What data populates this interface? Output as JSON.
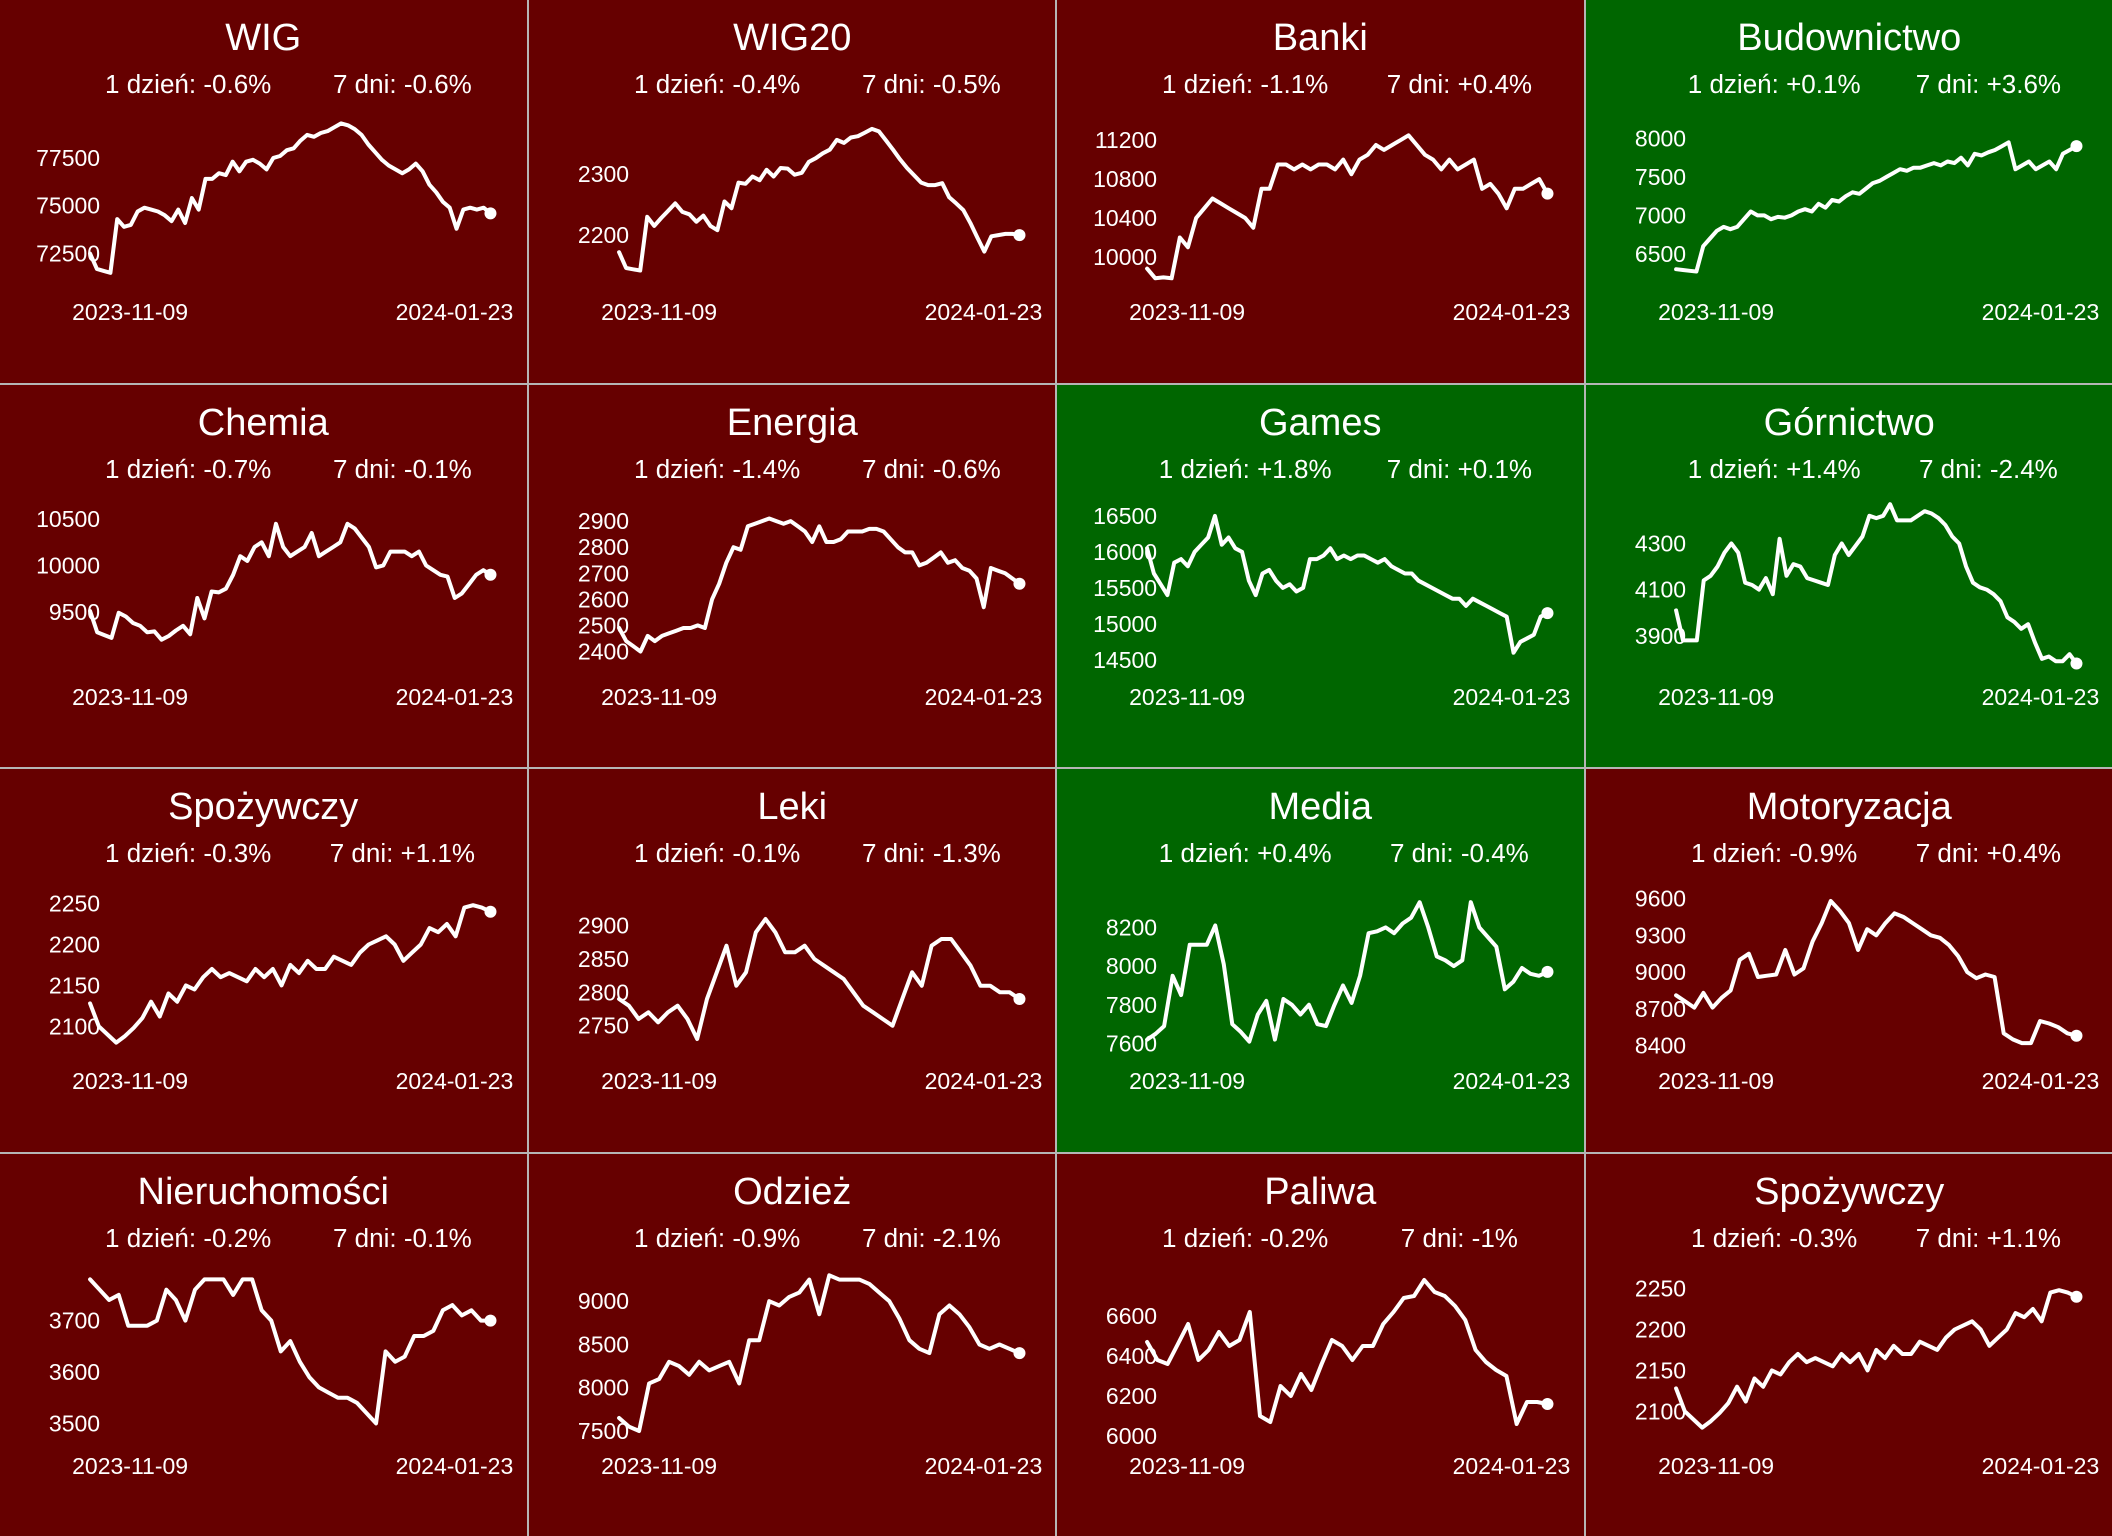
{
  "colors": {
    "down": "#660000",
    "up": "#006600",
    "line": "#ffffff"
  },
  "chart_data": [
    {
      "type": "line",
      "title": "WIG",
      "stat_1d": "1 dzień: -0.6%",
      "stat_7d": "7 dni: -0.6%",
      "trend": "down",
      "x_start": "2023-11-09",
      "x_end": "2024-01-23",
      "yticks": [
        72500,
        75000,
        77500
      ],
      "ylim": [
        70600,
        80000
      ],
      "values": [
        72500,
        71700,
        71600,
        71500,
        74300,
        73900,
        74000,
        74700,
        74900,
        74800,
        74700,
        74500,
        74200,
        74800,
        74100,
        75400,
        74800,
        76400,
        76400,
        76700,
        76600,
        77300,
        76800,
        77300,
        77400,
        77200,
        76900,
        77500,
        77600,
        77900,
        78000,
        78400,
        78700,
        78600,
        78800,
        78900,
        79100,
        79300,
        79200,
        79000,
        78700,
        78200,
        77800,
        77400,
        77100,
        76900,
        76700,
        76900,
        77200,
        76800,
        76100,
        75700,
        75200,
        74900,
        73800,
        74800,
        74900,
        74800,
        74900,
        74600
      ]
    },
    {
      "type": "line",
      "title": "WIG20",
      "stat_1d": "1 dzień: -0.4%",
      "stat_7d": "7 dni: -0.5%",
      "trend": "down",
      "x_start": "2023-11-09",
      "x_end": "2024-01-23",
      "yticks": [
        2200,
        2300
      ],
      "ylim": [
        2110,
        2405
      ],
      "values": [
        2172,
        2146,
        2144,
        2142,
        2230,
        2215,
        2228,
        2240,
        2252,
        2238,
        2234,
        2222,
        2232,
        2215,
        2208,
        2255,
        2244,
        2286,
        2284,
        2296,
        2290,
        2307,
        2296,
        2310,
        2309,
        2299,
        2302,
        2320,
        2326,
        2334,
        2340,
        2356,
        2351,
        2360,
        2362,
        2368,
        2374,
        2370,
        2355,
        2340,
        2324,
        2310,
        2298,
        2286,
        2282,
        2282,
        2285,
        2262,
        2252,
        2241,
        2220,
        2196,
        2173,
        2198,
        2200,
        2202,
        2202,
        2200
      ]
    },
    {
      "type": "line",
      "title": "Banki",
      "stat_1d": "1 dzień: -1.1%",
      "stat_7d": "7 dni: +0.4%",
      "trend": "down",
      "x_start": "2023-11-09",
      "x_end": "2024-01-23",
      "yticks": [
        10000,
        10400,
        10800,
        11200
      ],
      "ylim": [
        9660,
        11510
      ],
      "values": [
        9880,
        9780,
        9790,
        9780,
        10200,
        10100,
        10400,
        10500,
        10600,
        10550,
        10500,
        10450,
        10400,
        10300,
        10700,
        10700,
        10950,
        10950,
        10900,
        10950,
        10900,
        10950,
        10950,
        10900,
        11000,
        10850,
        11000,
        11050,
        11150,
        11100,
        11150,
        11200,
        11250,
        11150,
        11050,
        11000,
        10900,
        11000,
        10900,
        10950,
        11000,
        10700,
        10750,
        10650,
        10500,
        10700,
        10700,
        10750,
        10800,
        10650
      ]
    },
    {
      "type": "line",
      "title": "Budownictwo",
      "stat_1d": "1 dzień: +0.1%",
      "stat_7d": "7 dni: +3.6%",
      "trend": "up",
      "x_start": "2023-11-09",
      "x_end": "2024-01-23",
      "yticks": [
        6500,
        7000,
        7500,
        8000
      ],
      "ylim": [
        6030,
        8370
      ],
      "values": [
        6300,
        6290,
        6280,
        6270,
        6600,
        6700,
        6800,
        6850,
        6820,
        6850,
        6950,
        7050,
        7000,
        7000,
        6950,
        6980,
        6970,
        7000,
        7050,
        7080,
        7050,
        7150,
        7100,
        7200,
        7180,
        7250,
        7300,
        7280,
        7350,
        7420,
        7450,
        7500,
        7550,
        7600,
        7580,
        7620,
        7620,
        7650,
        7680,
        7650,
        7700,
        7680,
        7750,
        7650,
        7800,
        7780,
        7820,
        7850,
        7900,
        7950,
        7600,
        7650,
        7700,
        7600,
        7650,
        7700,
        7600,
        7800,
        7850,
        7900
      ]
    },
    {
      "type": "line",
      "title": "Chemia",
      "stat_1d": "1 dzień: -0.7%",
      "stat_7d": "7 dni: -0.1%",
      "trend": "down",
      "x_start": "2023-11-09",
      "x_end": "2024-01-23",
      "yticks": [
        9500,
        10000,
        10500
      ],
      "ylim": [
        8820,
        10760
      ],
      "values": [
        9510,
        9280,
        9250,
        9220,
        9490,
        9450,
        9380,
        9350,
        9280,
        9290,
        9200,
        9240,
        9300,
        9350,
        9260,
        9650,
        9430,
        9720,
        9710,
        9750,
        9900,
        10100,
        10050,
        10200,
        10250,
        10100,
        10450,
        10200,
        10100,
        10150,
        10200,
        10350,
        10100,
        10150,
        10200,
        10250,
        10450,
        10400,
        10300,
        10200,
        9980,
        10000,
        10150,
        10150,
        10150,
        10100,
        10150,
        10000,
        9950,
        9900,
        9880,
        9650,
        9700,
        9800,
        9900,
        9950,
        9900
      ]
    },
    {
      "type": "line",
      "title": "Energia",
      "stat_1d": "1 dzień: -1.4%",
      "stat_7d": "7 dni: -0.6%",
      "trend": "down",
      "x_start": "2023-11-09",
      "x_end": "2024-01-23",
      "yticks": [
        2400,
        2500,
        2600,
        2700,
        2800,
        2900
      ],
      "ylim": [
        2310,
        3000
      ],
      "values": [
        2490,
        2440,
        2420,
        2400,
        2460,
        2440,
        2460,
        2470,
        2480,
        2490,
        2490,
        2500,
        2490,
        2600,
        2660,
        2740,
        2800,
        2790,
        2880,
        2890,
        2900,
        2910,
        2900,
        2890,
        2900,
        2880,
        2860,
        2820,
        2880,
        2820,
        2820,
        2830,
        2860,
        2860,
        2860,
        2870,
        2870,
        2860,
        2830,
        2800,
        2780,
        2780,
        2730,
        2740,
        2760,
        2780,
        2740,
        2750,
        2720,
        2710,
        2680,
        2570,
        2720,
        2710,
        2700,
        2680,
        2660
      ]
    },
    {
      "type": "line",
      "title": "Games",
      "stat_1d": "1 dzień: +1.8%",
      "stat_7d": "7 dni: +0.1%",
      "trend": "up",
      "x_start": "2023-11-09",
      "x_end": "2024-01-23",
      "yticks": [
        14500,
        15000,
        15500,
        16000,
        16500
      ],
      "ylim": [
        14290,
        16790
      ],
      "values": [
        16050,
        15700,
        15550,
        15400,
        15850,
        15900,
        15800,
        16000,
        16100,
        16200,
        16500,
        16100,
        16200,
        16050,
        16000,
        15600,
        15400,
        15700,
        15750,
        15600,
        15500,
        15550,
        15450,
        15500,
        15900,
        15900,
        15950,
        16050,
        15900,
        15950,
        15900,
        15950,
        15950,
        15900,
        15850,
        15900,
        15800,
        15750,
        15700,
        15700,
        15600,
        15550,
        15500,
        15450,
        15400,
        15350,
        15350,
        15250,
        15350,
        15300,
        15250,
        15200,
        15150,
        15100,
        14600,
        14750,
        14800,
        14850,
        15100,
        15150
      ]
    },
    {
      "type": "line",
      "title": "Górnictwo",
      "stat_1d": "1 dzień: +1.4%",
      "stat_7d": "7 dni: -2.4%",
      "trend": "up",
      "x_start": "2023-11-09",
      "x_end": "2024-01-23",
      "yticks": [
        3900,
        4100,
        4300
      ],
      "ylim": [
        3730,
        4510
      ],
      "values": [
        4010,
        3880,
        3880,
        3880,
        4140,
        4160,
        4200,
        4260,
        4300,
        4260,
        4130,
        4120,
        4100,
        4150,
        4080,
        4320,
        4160,
        4210,
        4200,
        4150,
        4140,
        4130,
        4120,
        4250,
        4300,
        4250,
        4290,
        4330,
        4420,
        4410,
        4420,
        4470,
        4400,
        4400,
        4400,
        4420,
        4440,
        4430,
        4410,
        4380,
        4330,
        4300,
        4200,
        4130,
        4110,
        4100,
        4080,
        4050,
        3980,
        3960,
        3930,
        3950,
        3870,
        3800,
        3810,
        3790,
        3790,
        3820,
        3780
      ]
    },
    {
      "type": "line",
      "title": "Spożywczy",
      "stat_1d": "1 dzień: -0.3%",
      "stat_7d": "7 dni: +1.1%",
      "trend": "down",
      "x_start": "2023-11-09",
      "x_end": "2024-01-23",
      "yticks": [
        2100,
        2150,
        2200,
        2250
      ],
      "ylim": [
        2060,
        2280
      ],
      "values": [
        2128,
        2100,
        2090,
        2080,
        2088,
        2098,
        2110,
        2130,
        2112,
        2140,
        2130,
        2150,
        2145,
        2160,
        2170,
        2160,
        2165,
        2160,
        2155,
        2170,
        2160,
        2170,
        2150,
        2175,
        2165,
        2180,
        2170,
        2170,
        2185,
        2180,
        2175,
        2190,
        2200,
        2205,
        2210,
        2200,
        2180,
        2190,
        2200,
        2220,
        2215,
        2225,
        2210,
        2245,
        2248,
        2245,
        2240
      ]
    },
    {
      "type": "line",
      "title": "Leki",
      "stat_1d": "1 dzień: -0.1%",
      "stat_7d": "7 dni: -1.3%",
      "trend": "down",
      "x_start": "2023-11-09",
      "x_end": "2024-01-23",
      "yticks": [
        2750,
        2800,
        2850,
        2900
      ],
      "ylim": [
        2700,
        2970
      ],
      "values": [
        2790,
        2780,
        2760,
        2770,
        2755,
        2770,
        2780,
        2760,
        2730,
        2790,
        2830,
        2870,
        2810,
        2830,
        2890,
        2910,
        2890,
        2860,
        2860,
        2870,
        2850,
        2840,
        2830,
        2820,
        2800,
        2780,
        2770,
        2760,
        2750,
        2790,
        2830,
        2810,
        2870,
        2880,
        2880,
        2860,
        2840,
        2810,
        2810,
        2800,
        2800,
        2790
      ]
    },
    {
      "type": "line",
      "title": "Media",
      "stat_1d": "1 dzień: +0.4%",
      "stat_7d": "7 dni: -0.4%",
      "trend": "up",
      "x_start": "2023-11-09",
      "x_end": "2024-01-23",
      "yticks": [
        7600,
        7800,
        8000,
        8200
      ],
      "ylim": [
        7520,
        8450
      ],
      "values": [
        7620,
        7650,
        7690,
        7950,
        7850,
        8110,
        8110,
        8110,
        8210,
        8010,
        7700,
        7660,
        7610,
        7750,
        7820,
        7620,
        7830,
        7800,
        7750,
        7800,
        7700,
        7690,
        7800,
        7900,
        7810,
        7950,
        8170,
        8180,
        8200,
        8170,
        8220,
        8250,
        8330,
        8200,
        8050,
        8030,
        8000,
        8030,
        8330,
        8200,
        8150,
        8100,
        7880,
        7920,
        7990,
        7960,
        7950,
        7970
      ]
    },
    {
      "type": "line",
      "title": "Motoryzacja",
      "stat_1d": "1 dzień: -0.9%",
      "stat_7d": "7 dni: +0.4%",
      "trend": "down",
      "x_start": "2023-11-09",
      "x_end": "2024-01-23",
      "yticks": [
        8400,
        8700,
        9000,
        9300,
        9600
      ],
      "ylim": [
        8290,
        9760
      ],
      "values": [
        8810,
        8760,
        8710,
        8830,
        8710,
        8790,
        8850,
        9100,
        9150,
        8960,
        8970,
        8980,
        9180,
        8980,
        9030,
        9250,
        9400,
        9580,
        9500,
        9400,
        9180,
        9350,
        9300,
        9400,
        9480,
        9450,
        9400,
        9350,
        9300,
        9280,
        9220,
        9130,
        9000,
        8950,
        8980,
        8960,
        8500,
        8450,
        8420,
        8420,
        8600,
        8580,
        8550,
        8500,
        8480
      ]
    },
    {
      "type": "line",
      "title": "Nieruchomości",
      "stat_1d": "1 dzień: -0.2%",
      "stat_7d": "7 dni: -0.1%",
      "trend": "down",
      "x_start": "2023-11-09",
      "x_end": "2024-01-23",
      "yticks": [
        3500,
        3600,
        3700
      ],
      "ylim": [
        3460,
        3810
      ],
      "values": [
        3780,
        3760,
        3740,
        3750,
        3690,
        3690,
        3690,
        3700,
        3760,
        3740,
        3700,
        3760,
        3780,
        3780,
        3780,
        3750,
        3780,
        3780,
        3720,
        3700,
        3640,
        3660,
        3620,
        3590,
        3570,
        3560,
        3550,
        3550,
        3540,
        3520,
        3500,
        3640,
        3620,
        3630,
        3670,
        3670,
        3680,
        3720,
        3730,
        3710,
        3720,
        3700,
        3700
      ]
    },
    {
      "type": "line",
      "title": "Odzież",
      "stat_1d": "1 dzień: -0.9%",
      "stat_7d": "7 dni: -2.1%",
      "trend": "down",
      "x_start": "2023-11-09",
      "x_end": "2024-01-23",
      "yticks": [
        7500,
        8000,
        8500,
        9000
      ],
      "ylim": [
        7350,
        9430
      ],
      "values": [
        7650,
        7550,
        7500,
        8050,
        8100,
        8300,
        8250,
        8150,
        8300,
        8200,
        8250,
        8300,
        8050,
        8550,
        8550,
        9000,
        8950,
        9050,
        9100,
        9250,
        8850,
        9300,
        9250,
        9250,
        9250,
        9200,
        9100,
        9000,
        8800,
        8550,
        8450,
        8400,
        8850,
        8950,
        8850,
        8700,
        8500,
        8450,
        8500,
        8450,
        8400
      ]
    },
    {
      "type": "line",
      "title": "Paliwa",
      "stat_1d": "1 dzień: -0.2%",
      "stat_7d": "7 dni: -1%",
      "trend": "down",
      "x_start": "2023-11-09",
      "x_end": "2024-01-23",
      "yticks": [
        6000,
        6200,
        6400,
        6600
      ],
      "ylim": [
        5960,
        6860
      ],
      "values": [
        6470,
        6380,
        6360,
        6460,
        6560,
        6380,
        6430,
        6520,
        6450,
        6480,
        6620,
        6100,
        6070,
        6250,
        6200,
        6310,
        6230,
        6360,
        6480,
        6450,
        6380,
        6450,
        6450,
        6560,
        6620,
        6690,
        6700,
        6780,
        6720,
        6700,
        6650,
        6580,
        6430,
        6370,
        6330,
        6300,
        6060,
        6170,
        6170,
        6160
      ]
    },
    {
      "type": "line",
      "title": "Spożywczy",
      "stat_1d": "1 dzień: -0.3%",
      "stat_7d": "7 dni: +1.1%",
      "trend": "down",
      "x_start": "2023-11-09",
      "x_end": "2024-01-23",
      "yticks": [
        2100,
        2150,
        2200,
        2250
      ],
      "ylim": [
        2060,
        2280
      ],
      "values": [
        2128,
        2100,
        2090,
        2080,
        2088,
        2098,
        2110,
        2130,
        2112,
        2140,
        2130,
        2150,
        2145,
        2160,
        2170,
        2160,
        2165,
        2160,
        2155,
        2170,
        2160,
        2170,
        2150,
        2175,
        2165,
        2180,
        2170,
        2170,
        2185,
        2180,
        2175,
        2190,
        2200,
        2205,
        2210,
        2200,
        2180,
        2190,
        2200,
        2220,
        2215,
        2225,
        2210,
        2245,
        2248,
        2245,
        2240
      ]
    }
  ]
}
